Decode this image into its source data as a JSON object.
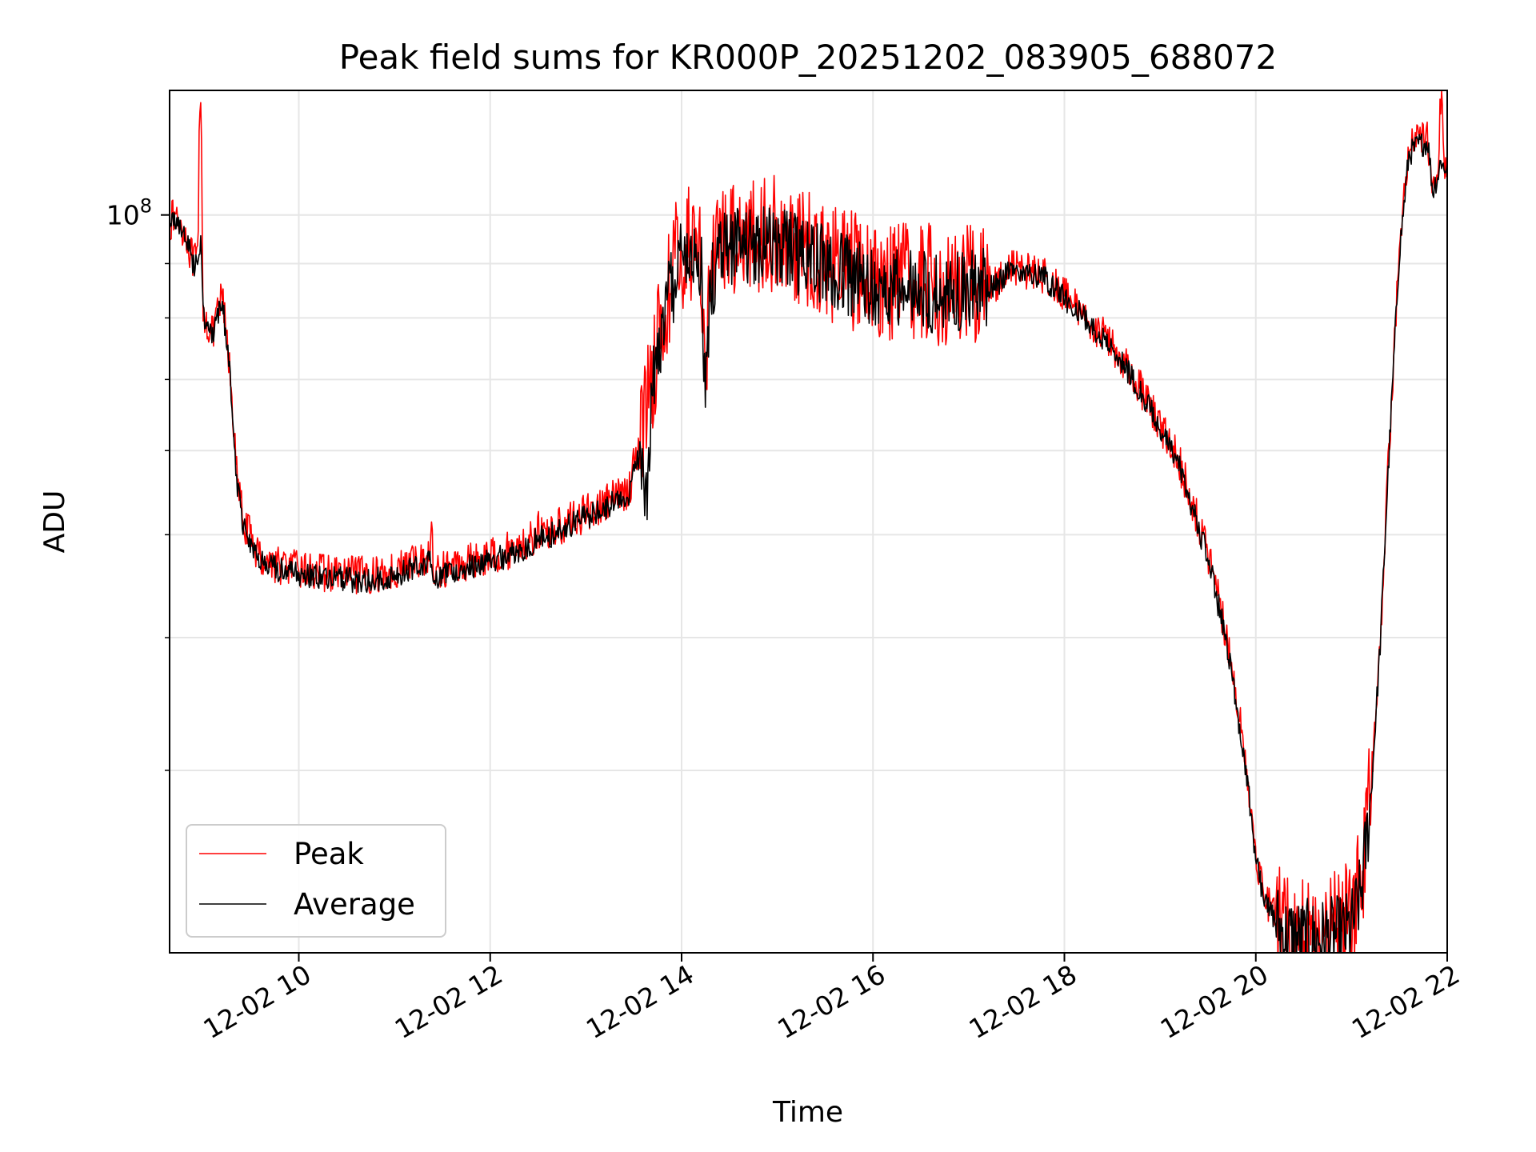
{
  "chart_data": {
    "type": "line",
    "title": "Peak field sums for KR000P_20251202_083905_688072",
    "xlabel": "Time",
    "ylabel": "ADU",
    "yscale": "log",
    "xlim": [
      8.65,
      22.0
    ],
    "ylim": [
      20200000,
      131000000
    ],
    "grid": true,
    "legend_position": "lower-left",
    "x_ticks": [
      {
        "value": 10,
        "label": "12-02 10"
      },
      {
        "value": 12,
        "label": "12-02 12"
      },
      {
        "value": 14,
        "label": "12-02 14"
      },
      {
        "value": 16,
        "label": "12-02 16"
      },
      {
        "value": 18,
        "label": "12-02 18"
      },
      {
        "value": 20,
        "label": "12-02 20"
      },
      {
        "value": 22,
        "label": "12-02 22"
      }
    ],
    "y_major_ticks": [
      {
        "value": 100000000,
        "base": "10",
        "exponent": "8"
      }
    ],
    "y_minor_ticks": [
      30000000,
      40000000,
      50000000,
      60000000,
      70000000,
      80000000,
      90000000
    ],
    "series": [
      {
        "name": "Peak",
        "color": "#ff0000",
        "noise": 0.018,
        "x": [
          8.65,
          8.7,
          8.8,
          8.9,
          8.95,
          8.96,
          8.98,
          9.0,
          9.02,
          9.1,
          9.2,
          9.25,
          9.3,
          9.35,
          9.42,
          9.6,
          9.8,
          10.0,
          10.3,
          10.6,
          10.9,
          11.1,
          11.3,
          11.38,
          11.39,
          11.4,
          11.41,
          11.5,
          11.8,
          12.2,
          12.45,
          12.5,
          12.55,
          12.8,
          13.2,
          13.45,
          13.5,
          13.6,
          13.62,
          13.7,
          13.85,
          13.95,
          14.1,
          14.2,
          14.25,
          14.3,
          14.45,
          14.6,
          15.0,
          15.5,
          16.0,
          16.5,
          17.0,
          17.3,
          17.4,
          17.7,
          17.8,
          18.0,
          18.3,
          18.6,
          18.9,
          19.2,
          19.5,
          19.7,
          19.9,
          20.0,
          20.1,
          20.3,
          20.5,
          20.7,
          20.9,
          21.0,
          21.1,
          21.2,
          21.3,
          21.4,
          21.5,
          21.6,
          21.7,
          21.8,
          21.85,
          21.87,
          21.9,
          21.93,
          21.95,
          21.97,
          22.0
        ],
        "y": [
          98000000,
          100000000,
          97000000,
          90000000,
          92000000,
          122000000,
          126000000,
          82000000,
          80000000,
          77000000,
          84000000,
          76000000,
          68000000,
          57000000,
          51500000,
          47500000,
          46800000,
          46400000,
          46000000,
          45800000,
          45900000,
          46700000,
          47500000,
          48000000,
          54000000,
          46000000,
          45800000,
          46400000,
          47200000,
          48300000,
          49600000,
          50500000,
          50000000,
          51300000,
          53500000,
          55000000,
          58000000,
          64000000,
          66000000,
          72000000,
          84000000,
          91000000,
          94000000,
          93000000,
          71000000,
          88000000,
          95000000,
          96500000,
          95500000,
          91000000,
          87000000,
          86000000,
          86000000,
          86500000,
          89000000,
          88500000,
          87500000,
          84000000,
          79000000,
          73500000,
          66000000,
          58500000,
          48000000,
          40000000,
          30500000,
          25000000,
          22800000,
          21200000,
          21000000,
          21100000,
          21300000,
          21700000,
          23500000,
          28500000,
          40000000,
          62000000,
          93000000,
          115000000,
          117500000,
          118000000,
          106000000,
          108000000,
          109500000,
          127000000,
          131000000,
          110000000,
          114000000
        ]
      },
      {
        "name": "Average",
        "color": "#000000",
        "noise": 0.012,
        "x": [
          8.65,
          8.7,
          8.8,
          8.9,
          8.95,
          8.98,
          9.0,
          9.02,
          9.1,
          9.2,
          9.25,
          9.3,
          9.35,
          9.42,
          9.6,
          9.8,
          10.0,
          10.3,
          10.6,
          10.9,
          11.1,
          11.3,
          11.38,
          11.4,
          11.41,
          11.5,
          11.8,
          12.2,
          12.45,
          12.5,
          12.55,
          12.8,
          13.2,
          13.45,
          13.5,
          13.6,
          13.62,
          13.7,
          13.85,
          13.95,
          14.1,
          14.2,
          14.25,
          14.3,
          14.45,
          14.6,
          15.0,
          15.5,
          16.0,
          16.5,
          17.0,
          17.3,
          17.4,
          17.7,
          17.8,
          18.0,
          18.3,
          18.6,
          18.9,
          19.2,
          19.5,
          19.7,
          19.9,
          20.0,
          20.1,
          20.3,
          20.5,
          20.7,
          20.9,
          21.0,
          21.1,
          21.2,
          21.3,
          21.4,
          21.5,
          21.6,
          21.7,
          21.8,
          21.85,
          21.87,
          21.9,
          21.93,
          21.95,
          21.97,
          22.0
        ],
        "y": [
          97500000,
          99500000,
          96500000,
          89500000,
          91500000,
          96000000,
          81500000,
          79500000,
          76500000,
          83000000,
          75500000,
          67500000,
          56500000,
          51000000,
          47000000,
          46300000,
          45900000,
          45500000,
          45300000,
          45400000,
          46200000,
          47000000,
          47500000,
          45500000,
          45300000,
          45900000,
          46700000,
          47800000,
          49100000,
          50000000,
          49500000,
          50800000,
          53000000,
          54500000,
          57500000,
          60000000,
          52000000,
          70000000,
          82000000,
          89000000,
          92000000,
          91500000,
          66000000,
          86000000,
          93500000,
          94500000,
          93500000,
          89500000,
          85500000,
          84500000,
          85000000,
          86000000,
          88500000,
          88000000,
          87000000,
          83500000,
          78500000,
          73000000,
          65500000,
          58000000,
          47500000,
          39500000,
          30000000,
          24700000,
          22500000,
          21000000,
          20800000,
          20850000,
          21000000,
          21300000,
          23000000,
          28000000,
          39500000,
          61500000,
          92000000,
          114000000,
          116500000,
          117000000,
          105000000,
          107000000,
          108500000,
          112000000,
          113000000,
          109000000,
          113000000
        ]
      }
    ]
  }
}
